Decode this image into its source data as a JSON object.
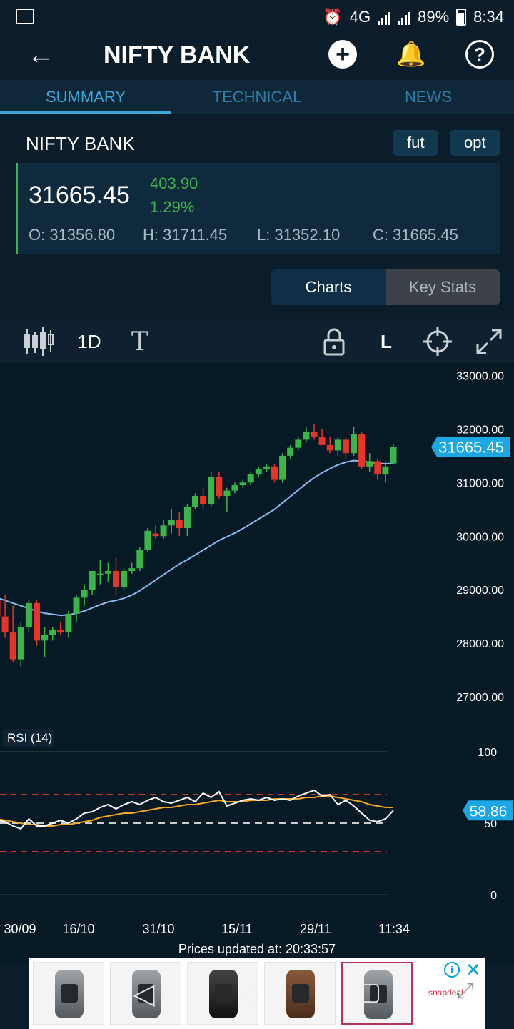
{
  "status_bar": {
    "network": "4G",
    "sim1": "1",
    "sim2": "2",
    "battery": "89%",
    "time": "8:34"
  },
  "header": {
    "title": "NIFTY BANK",
    "back_icon": "arrow-left-icon",
    "add_icon": "plus-circle-icon",
    "alert_icon": "bell-plus-icon",
    "help_icon": "help-circle-icon"
  },
  "tabs": [
    {
      "label": "SUMMARY",
      "active": true
    },
    {
      "label": "TECHNICAL",
      "active": false
    },
    {
      "label": "NEWS",
      "active": false
    }
  ],
  "instrument": {
    "name": "NIFTY BANK",
    "fut_label": "fut",
    "opt_label": "opt"
  },
  "quote": {
    "price": "31665.45",
    "change": "403.90",
    "change_pct": "1.29%",
    "open": "O: 31356.80",
    "high": "H: 31711.45",
    "low": "L: 31352.10",
    "close": "C: 31665.45"
  },
  "view_toggle": {
    "charts": "Charts",
    "key_stats": "Key Stats",
    "active": "charts"
  },
  "chart_toolbar": {
    "chart_type_icon": "candlestick-icon",
    "interval": "1D",
    "text_tool_icon": "text-icon",
    "lock_icon": "lock-icon",
    "scale_toggle": "L",
    "crosshair_icon": "crosshair-icon",
    "expand_icon": "expand-icon"
  },
  "chart_data": [
    {
      "type": "candlestick",
      "title": "",
      "last_price_label": "31665.45",
      "y_ticks": [
        "33000.00",
        "32000.00",
        "31000.00",
        "30000.00",
        "29000.00",
        "28000.00",
        "27000.00"
      ],
      "ylim": [
        26800,
        33100
      ],
      "x_ticks": [
        "30/09",
        "16/10",
        "31/10",
        "15/11",
        "29/11",
        "11:34"
      ],
      "colors": {
        "up": "#3bb54a",
        "down": "#e8332a",
        "ma": "#8ab9f0"
      },
      "ohlc": [
        [
          28800,
          29100,
          28300,
          28500
        ],
        [
          28500,
          28900,
          28100,
          28200
        ],
        [
          28200,
          28700,
          27650,
          27700
        ],
        [
          27700,
          28400,
          27550,
          28300
        ],
        [
          28300,
          28800,
          28200,
          28750
        ],
        [
          28750,
          28800,
          27950,
          28050
        ],
        [
          28050,
          28300,
          27750,
          28150
        ],
        [
          28150,
          28300,
          28050,
          28250
        ],
        [
          28250,
          28400,
          28150,
          28200
        ],
        [
          28200,
          28600,
          28100,
          28550
        ],
        [
          28550,
          28900,
          28400,
          28850
        ],
        [
          28850,
          29100,
          28700,
          29000
        ],
        [
          29000,
          29350,
          28900,
          29350
        ],
        [
          29300,
          29550,
          29100,
          29300
        ],
        [
          29300,
          29500,
          29150,
          29350
        ],
        [
          29350,
          29600,
          28900,
          29050
        ],
        [
          29050,
          29400,
          29000,
          29350
        ],
        [
          29350,
          29500,
          29300,
          29400
        ],
        [
          29400,
          29800,
          29350,
          29750
        ],
        [
          29750,
          30150,
          29700,
          30100
        ],
        [
          30050,
          30200,
          29950,
          30000
        ],
        [
          30000,
          30300,
          29950,
          30200
        ],
        [
          30200,
          30500,
          30050,
          30300
        ],
        [
          30300,
          30450,
          30000,
          30150
        ],
        [
          30150,
          30600,
          30000,
          30550
        ],
        [
          30550,
          30800,
          30500,
          30750
        ],
        [
          30750,
          30900,
          30500,
          30600
        ],
        [
          30600,
          31200,
          30550,
          31100
        ],
        [
          31100,
          31200,
          30700,
          30750
        ],
        [
          30750,
          30900,
          30450,
          30850
        ],
        [
          30850,
          31000,
          30800,
          30950
        ],
        [
          30950,
          31050,
          30900,
          31000
        ],
        [
          31000,
          31200,
          30950,
          31150
        ],
        [
          31150,
          31300,
          31100,
          31250
        ],
        [
          31250,
          31350,
          31200,
          31300
        ],
        [
          31300,
          31350,
          31000,
          31050
        ],
        [
          31050,
          31550,
          31000,
          31500
        ],
        [
          31500,
          31700,
          31450,
          31650
        ],
        [
          31650,
          31850,
          31600,
          31800
        ],
        [
          31800,
          32050,
          31750,
          31950
        ],
        [
          31950,
          32100,
          31800,
          31850
        ],
        [
          31850,
          32000,
          31700,
          31700
        ],
        [
          31700,
          31850,
          31550,
          31600
        ],
        [
          31600,
          31850,
          31500,
          31800
        ],
        [
          31800,
          31850,
          31450,
          31550
        ],
        [
          31550,
          32050,
          31500,
          31900
        ],
        [
          31900,
          31950,
          31250,
          31300
        ],
        [
          31300,
          31550,
          31200,
          31400
        ],
        [
          31400,
          31450,
          31050,
          31150
        ],
        [
          31150,
          31400,
          31000,
          31300
        ],
        [
          31356.8,
          31711.45,
          31352.1,
          31665.45
        ]
      ],
      "ma": [
        28850,
        28800,
        28750,
        28700,
        28650,
        28600,
        28560,
        28540,
        28520,
        28530,
        28560,
        28600,
        28660,
        28720,
        28770,
        28800,
        28840,
        28900,
        28980,
        29080,
        29180,
        29280,
        29380,
        29480,
        29560,
        29650,
        29740,
        29830,
        29920,
        29990,
        30060,
        30140,
        30230,
        30320,
        30410,
        30500,
        30620,
        30740,
        30860,
        30980,
        31090,
        31180,
        31260,
        31330,
        31380,
        31410,
        31400,
        31380,
        31360,
        31350,
        31360
      ]
    },
    {
      "type": "line",
      "title": "RSI (14)",
      "last_value_label": "58.86",
      "y_ticks": [
        "100",
        "50",
        "0"
      ],
      "ylim": [
        0,
        100
      ],
      "levels": [
        70,
        30
      ],
      "colors": {
        "rsi": "#ffffff",
        "signal": "#f5a623",
        "levels": "#c0392b",
        "midline": "#cccccc"
      },
      "rsi": [
        52,
        51,
        48,
        46,
        53,
        48,
        48,
        50,
        52,
        50,
        53,
        57,
        58,
        61,
        63,
        60,
        63,
        65,
        63,
        66,
        68,
        65,
        64,
        66,
        68,
        65,
        71,
        68,
        72,
        62,
        64,
        66,
        67,
        66,
        68,
        66,
        67,
        66,
        69,
        71,
        73,
        69,
        70,
        63,
        66,
        62,
        57,
        52,
        51,
        53,
        58.86
      ],
      "signal": [
        53,
        52,
        51,
        50,
        49,
        49,
        48,
        48,
        49,
        49,
        50,
        51,
        52,
        54,
        55,
        56,
        57,
        57,
        58,
        59,
        60,
        61,
        61,
        62,
        63,
        63,
        64,
        65,
        66,
        65,
        65,
        65,
        66,
        66,
        66,
        67,
        67,
        67,
        67,
        68,
        68,
        69,
        69,
        68,
        67,
        66,
        65,
        63,
        62,
        61,
        61
      ]
    }
  ],
  "footer": {
    "updated_label": "Prices updated at:",
    "updated_time": "20:33:57"
  },
  "ad": {
    "brand": "snapdeal",
    "info_icon": "info-icon",
    "close_icon": "close-icon",
    "nav_back_icon": "nav-back-icon",
    "nav_home_icon": "nav-home-icon",
    "nav_recent_icon": "nav-recent-icon",
    "nav_expand_icon": "nav-expand-icon"
  }
}
